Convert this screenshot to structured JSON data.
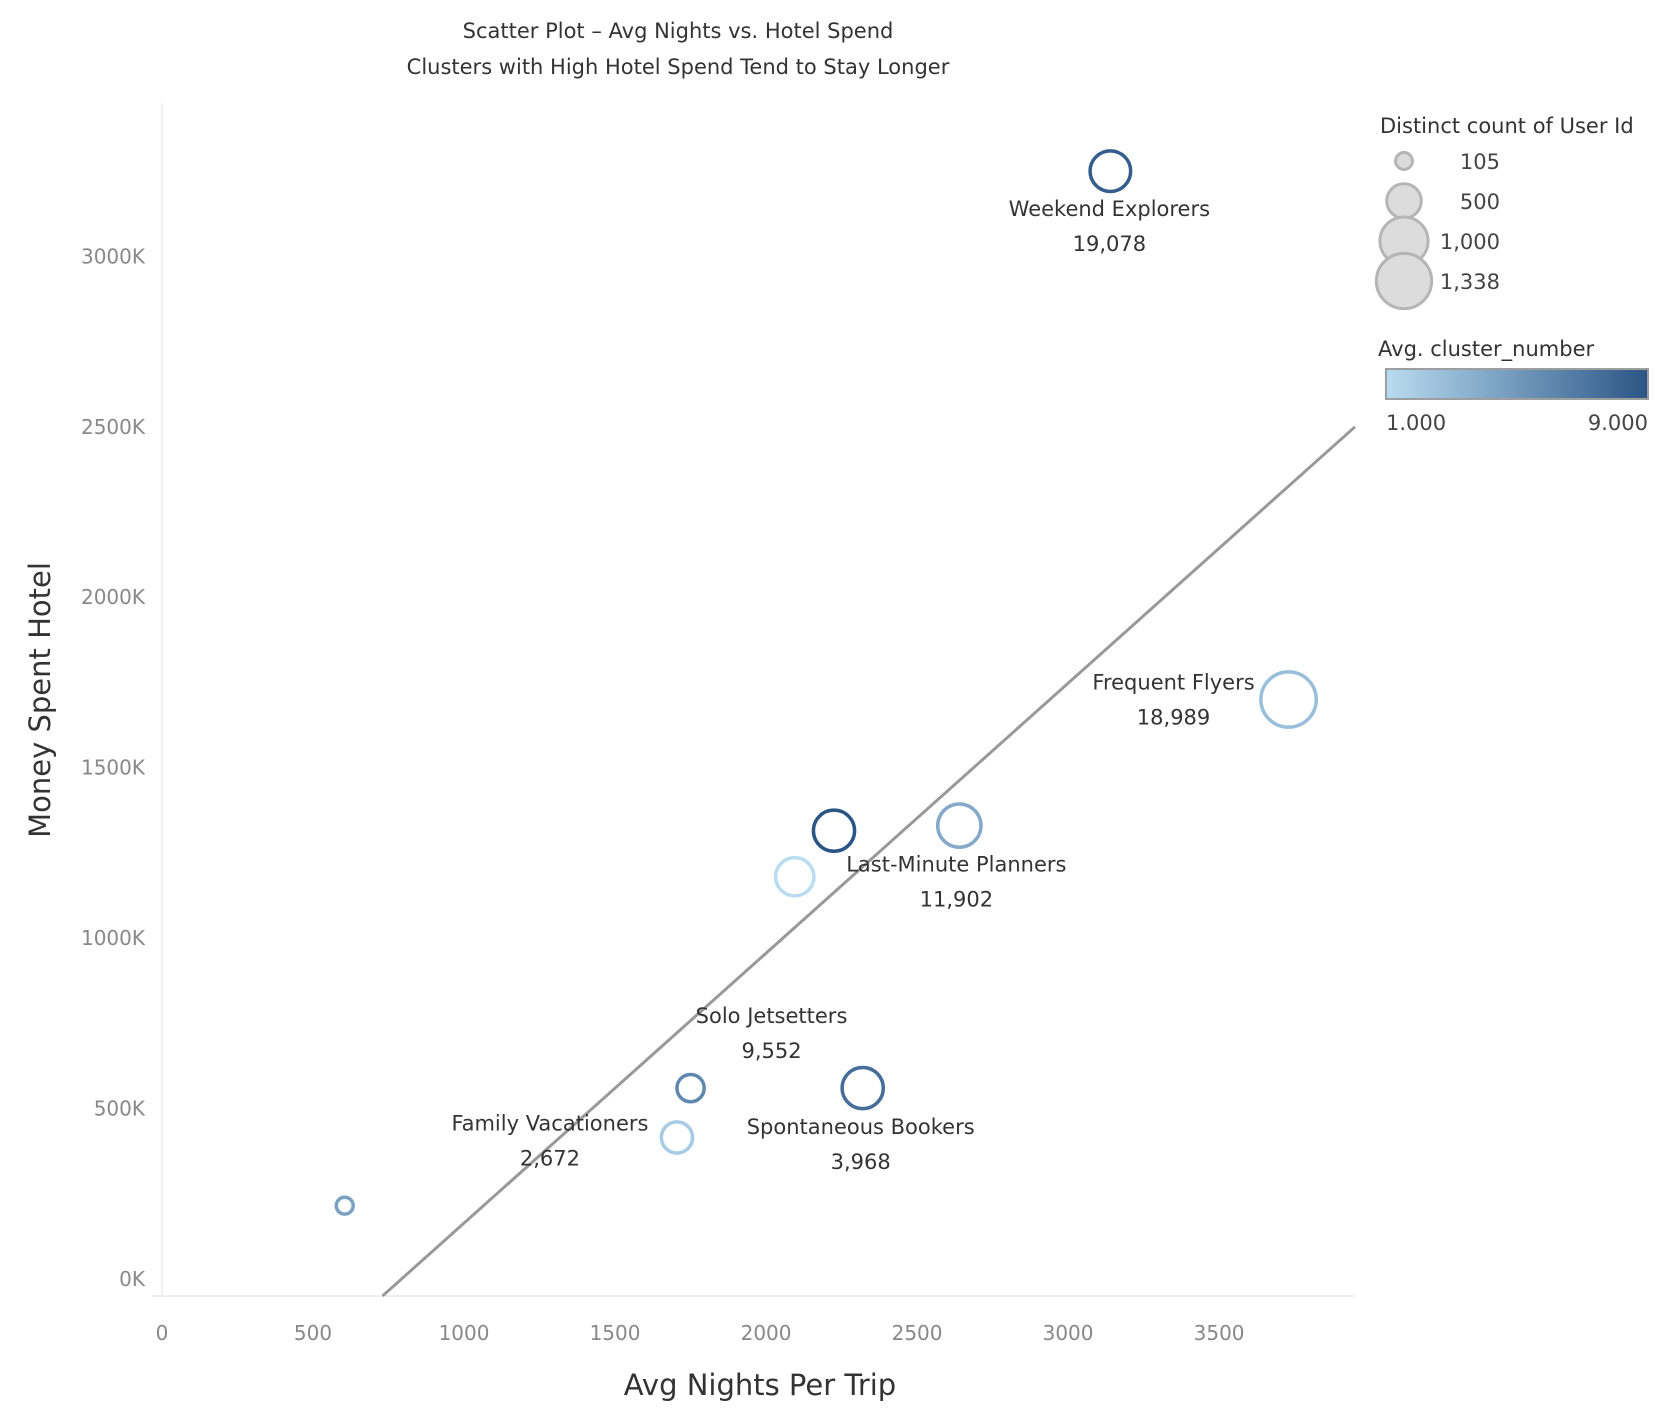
{
  "chart_data": {
    "type": "scatter",
    "title": "Scatter Plot – Avg Nights vs. Hotel Spend",
    "subtitle": "Clusters with High Hotel Spend Tend to Stay Longer",
    "xlabel": "Avg Nights Per Trip",
    "ylabel": "Money Spent Hotel",
    "xlim": [
      0,
      3950
    ],
    "ylim": [
      -50000,
      3450000
    ],
    "x_ticks": [
      0,
      500,
      1000,
      1500,
      2000,
      2500,
      3000,
      3500
    ],
    "x_tick_labels": [
      "0",
      "500",
      "1000",
      "1500",
      "2000",
      "2500",
      "3000",
      "3500"
    ],
    "y_ticks": [
      0,
      500000,
      1000000,
      1500000,
      2000000,
      2500000,
      3000000
    ],
    "y_tick_labels": [
      "0K",
      "500K",
      "1000K",
      "1500K",
      "2000K",
      "2500K",
      "3000K"
    ],
    "grid": false,
    "points": [
      {
        "x": 3140,
        "y": 3250000,
        "size": 700,
        "cluster": 8.5,
        "label": "Weekend Explorers",
        "value": "19,078"
      },
      {
        "x": 3730,
        "y": 1700000,
        "size": 1338,
        "cluster": 2.8,
        "label": "Frequent Flyers",
        "value": "18,989"
      },
      {
        "x": 2640,
        "y": 1330000,
        "size": 800,
        "cluster": 4.0,
        "label": "Last-Minute Planners",
        "value": "11,902"
      },
      {
        "x": 2225,
        "y": 1315000,
        "size": 720,
        "cluster": 9.0,
        "label": "",
        "value": ""
      },
      {
        "x": 2095,
        "y": 1180000,
        "size": 620,
        "cluster": 1.0,
        "label": "",
        "value": ""
      },
      {
        "x": 1750,
        "y": 560000,
        "size": 300,
        "cluster": 6.0,
        "label": "Solo Jetsetters",
        "value": "9,552"
      },
      {
        "x": 2320,
        "y": 560000,
        "size": 720,
        "cluster": 7.5,
        "label": "Spontaneous Bookers",
        "value": "3,968"
      },
      {
        "x": 1705,
        "y": 415000,
        "size": 400,
        "cluster": 2.0,
        "label": "Family Vacationers",
        "value": "2,672"
      },
      {
        "x": 605,
        "y": 215000,
        "size": 105,
        "cluster": 4.5,
        "label": "",
        "value": ""
      }
    ],
    "trend_line": {
      "x": [
        730,
        3950
      ],
      "y": [
        -50000,
        2500000
      ]
    },
    "legend_size": {
      "title": "Distinct count of User Id",
      "placement": "top-right",
      "entries": [
        {
          "label": "105",
          "size": 105
        },
        {
          "label": "500",
          "size": 500
        },
        {
          "label": "1,000",
          "size": 1000
        },
        {
          "label": "1,338",
          "size": 1338
        }
      ]
    },
    "legend_color": {
      "title": "Avg. cluster_number",
      "placement": "right",
      "min_label": "1.000",
      "max_label": "9.000",
      "min": 1,
      "max": 9
    },
    "colors": {
      "color_low": "#b9dcf1",
      "color_high": "#2b5585",
      "trend": "#999999",
      "legend_circle_fill": "#dcdcdc",
      "legend_circle_stroke": "#b5b5b5",
      "axis": "#e6e6e6"
    }
  }
}
